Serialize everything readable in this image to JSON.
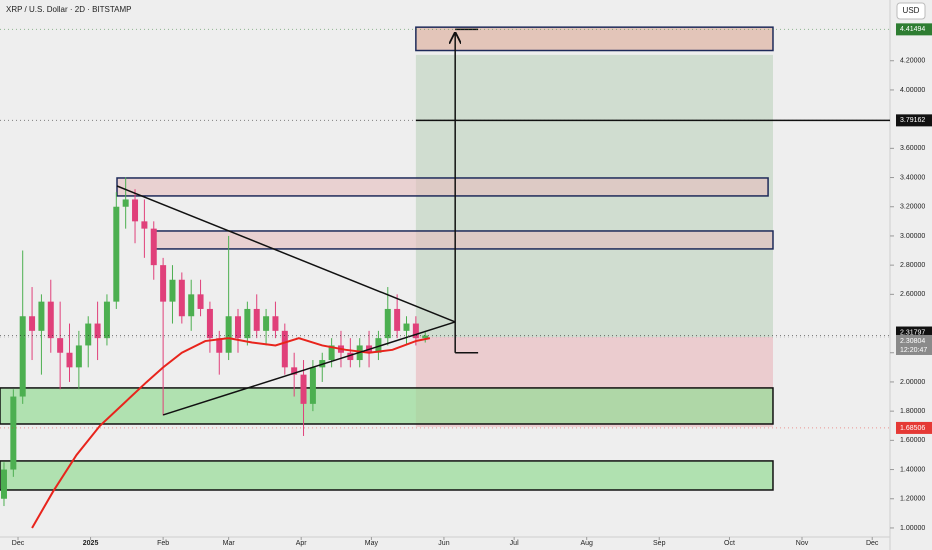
{
  "chart_data": {
    "type": "candlestick",
    "title": "XRP / U.S. Dollar · 2D · BITSTAMP",
    "currency": "USD",
    "xlim": [
      -7.7,
      372.6
    ],
    "xticks": [
      {
        "value": 0,
        "label": "Dec"
      },
      {
        "value": 31,
        "label": "2025"
      },
      {
        "value": 62,
        "label": "Feb"
      },
      {
        "value": 90,
        "label": "Mar"
      },
      {
        "value": 121,
        "label": "Apr"
      },
      {
        "value": 151,
        "label": "May"
      },
      {
        "value": 182,
        "label": "Jun"
      },
      {
        "value": 212,
        "label": "Jul"
      },
      {
        "value": 243,
        "label": "Aug"
      },
      {
        "value": 274,
        "label": "Sep"
      },
      {
        "value": 304,
        "label": "Oct"
      },
      {
        "value": 335,
        "label": "Nov"
      },
      {
        "value": 365,
        "label": "Dec"
      }
    ],
    "ylim": [
      0.938,
      4.616
    ],
    "yticks": [
      {
        "value": 1.0,
        "label": "1.00000"
      },
      {
        "value": 1.2,
        "label": "1.20000"
      },
      {
        "value": 1.4,
        "label": "1.40000"
      },
      {
        "value": 1.6,
        "label": "1.60000"
      },
      {
        "value": 1.8,
        "label": "1.80000"
      },
      {
        "value": 2.0,
        "label": "2.00000"
      },
      {
        "value": 2.2,
        "label": "2.20000"
      },
      {
        "value": 2.6,
        "label": "2.60000"
      },
      {
        "value": 2.8,
        "label": "2.80000"
      },
      {
        "value": 3.0,
        "label": "3.00000"
      },
      {
        "value": 3.2,
        "label": "3.20000"
      },
      {
        "value": 3.4,
        "label": "3.40000"
      },
      {
        "value": 3.6,
        "label": "3.60000"
      },
      {
        "value": 4.0,
        "label": "4.00000"
      },
      {
        "value": 4.2,
        "label": "4.20000"
      }
    ],
    "up_color": "#4caf50",
    "down_color": "#e0407a",
    "x": [
      -6,
      -2,
      2,
      6,
      10,
      14,
      18,
      22,
      26,
      30,
      34,
      38,
      42,
      46,
      50,
      54,
      58,
      62,
      66,
      70,
      74,
      78,
      82,
      86,
      90,
      94,
      98,
      102,
      106,
      110,
      114,
      118,
      122,
      126,
      130,
      134,
      138,
      142,
      146,
      150,
      154,
      158,
      162,
      166,
      170,
      174
    ],
    "open": [
      1.2,
      1.4,
      1.9,
      2.45,
      2.35,
      2.55,
      2.3,
      2.2,
      2.1,
      2.25,
      2.4,
      2.3,
      2.55,
      3.2,
      3.25,
      3.1,
      3.05,
      2.8,
      2.55,
      2.7,
      2.45,
      2.6,
      2.5,
      2.3,
      2.2,
      2.45,
      2.3,
      2.5,
      2.35,
      2.45,
      2.35,
      2.1,
      2.05,
      1.85,
      2.1,
      2.15,
      2.25,
      2.2,
      2.15,
      2.25,
      2.2,
      2.3,
      2.5,
      2.35,
      2.4,
      2.3
    ],
    "high": [
      1.45,
      1.95,
      2.9,
      2.65,
      2.6,
      2.7,
      2.55,
      2.4,
      2.35,
      2.45,
      2.55,
      2.6,
      3.3,
      3.4,
      3.32,
      3.25,
      3.1,
      2.85,
      2.8,
      2.75,
      2.7,
      2.7,
      2.55,
      2.35,
      3.0,
      2.5,
      2.55,
      2.6,
      2.5,
      2.55,
      2.4,
      2.2,
      2.15,
      2.15,
      2.2,
      2.3,
      2.35,
      2.3,
      2.3,
      2.35,
      2.35,
      2.65,
      2.6,
      2.45,
      2.45,
      2.35
    ],
    "low": [
      1.15,
      1.35,
      1.85,
      2.15,
      2.05,
      2.2,
      1.95,
      2.0,
      1.95,
      2.1,
      2.15,
      2.25,
      2.5,
      3.05,
      2.95,
      2.85,
      2.7,
      1.77,
      2.4,
      2.4,
      2.35,
      2.45,
      2.2,
      2.05,
      2.15,
      2.2,
      2.25,
      2.3,
      2.25,
      2.3,
      2.05,
      1.9,
      1.63,
      1.8,
      2.0,
      2.1,
      2.1,
      2.1,
      2.1,
      2.1,
      2.15,
      2.25,
      2.3,
      2.25,
      2.25,
      2.27
    ],
    "close": [
      1.4,
      1.9,
      2.45,
      2.35,
      2.55,
      2.3,
      2.2,
      2.1,
      2.25,
      2.4,
      2.3,
      2.55,
      3.2,
      3.25,
      3.1,
      3.05,
      2.8,
      2.55,
      2.7,
      2.45,
      2.6,
      2.5,
      2.3,
      2.2,
      2.45,
      2.3,
      2.5,
      2.35,
      2.45,
      2.35,
      2.1,
      2.05,
      1.85,
      2.1,
      2.15,
      2.25,
      2.2,
      2.15,
      2.25,
      2.2,
      2.3,
      2.5,
      2.35,
      2.4,
      2.3,
      2.31797
    ],
    "ma": {
      "color": "#e8241c",
      "x": [
        6,
        15,
        25,
        35,
        45,
        55,
        62,
        70,
        80,
        90,
        100,
        110,
        120,
        130,
        140,
        150,
        160,
        170,
        176
      ],
      "values": [
        1.0,
        1.25,
        1.5,
        1.7,
        1.85,
        2.0,
        2.1,
        2.2,
        2.28,
        2.3,
        2.27,
        2.25,
        2.3,
        2.25,
        2.22,
        2.2,
        2.22,
        2.28,
        2.3
      ]
    },
    "zones": [
      {
        "x": [
          170,
          322.6
        ],
        "y": [
          2.308,
          4.24
        ],
        "fill": "rgba(120,170,120,0.25)",
        "stroke": "none"
      },
      {
        "x": [
          170,
          322.6
        ],
        "y": [
          1.692,
          2.308
        ],
        "fill": "rgba(230,120,130,0.28)",
        "stroke": "none"
      },
      {
        "x": [
          170,
          322.6
        ],
        "y": [
          4.27,
          4.43
        ],
        "fill": "rgba(220,170,150,0.6)",
        "stroke": "#1e2a5a"
      },
      {
        "x": [
          42.3,
          320.5
        ],
        "y": [
          3.274,
          3.397
        ],
        "fill": "rgba(230,190,190,0.6)",
        "stroke": "#1e2a5a"
      },
      {
        "x": [
          58.5,
          322.6
        ],
        "y": [
          2.911,
          3.034
        ],
        "fill": "rgba(230,190,190,0.6)",
        "stroke": "#1e2a5a"
      },
      {
        "x": [
          -7.7,
          322.6
        ],
        "y": [
          1.712,
          1.959
        ],
        "fill": "rgba(150,220,150,0.7)",
        "stroke": "#111"
      },
      {
        "x": [
          -7.7,
          322.6
        ],
        "y": [
          1.26,
          1.459
        ],
        "fill": "rgba(150,220,150,0.7)",
        "stroke": "#111"
      }
    ],
    "lines": [
      {
        "x": [
          42.3,
          186.8
        ],
        "y": [
          3.342,
          2.411
        ],
        "color": "#111",
        "arrow": false
      },
      {
        "x": [
          62,
          186.8
        ],
        "y": [
          1.774,
          2.411
        ],
        "color": "#111",
        "arrow": false
      },
      {
        "x": [
          170,
          372.6
        ],
        "y": [
          3.79162,
          3.79162
        ],
        "color": "#111",
        "arrow": false
      },
      {
        "x": [
          186.8,
          186.8
        ],
        "y": [
          2.2,
          4.39
        ],
        "color": "#111",
        "arrow": true
      },
      {
        "x": [
          186.8,
          196.6
        ],
        "y": [
          2.2,
          2.2
        ],
        "color": "#111",
        "arrow": false
      },
      {
        "x": [
          186.8,
          196.6
        ],
        "y": [
          4.41494,
          4.41494
        ],
        "color": "#111",
        "arrow": false
      }
    ],
    "price_labels": [
      {
        "value": 4.41494,
        "label": "4.41494",
        "color": "#2e7d32"
      },
      {
        "value": 3.79162,
        "label": "3.79162",
        "color": "#111111"
      },
      {
        "value": 2.31797,
        "label": "2.31797",
        "color": "#111111"
      },
      {
        "value": 2.30804,
        "label": "2.30804",
        "color": "#8a8a8a"
      },
      {
        "value": 1.68506,
        "label": "1.68506",
        "color": "#e53935"
      }
    ],
    "countdown": "12:20:47"
  }
}
